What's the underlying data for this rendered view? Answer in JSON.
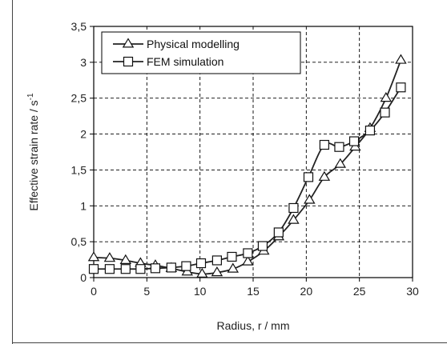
{
  "chart_data": {
    "type": "line",
    "xlabel": "Radius, r / mm",
    "ylabel": "Effective strain rate / s",
    "ylabel_superscript": "-1",
    "xlim": [
      0,
      30
    ],
    "ylim": [
      0,
      3.5
    ],
    "xticks": [
      "0",
      "5",
      "10",
      "15",
      "20",
      "25",
      "30"
    ],
    "yticks": [
      "0",
      "0,5",
      "1",
      "1,5",
      "2",
      "2,5",
      "3",
      "3,5"
    ],
    "grid": true,
    "legend_position": "top-left",
    "series": [
      {
        "name": "Physical modelling",
        "marker": "triangle",
        "color": "#222222",
        "x": [
          0,
          1.5,
          3,
          4.4,
          5.8,
          7.3,
          8.8,
          10.2,
          11.6,
          13.1,
          14.5,
          16,
          17.4,
          18.8,
          20.3,
          21.7,
          23.2,
          24.6,
          26,
          27.5,
          28.9
        ],
        "y": [
          0.28,
          0.27,
          0.24,
          0.2,
          0.17,
          0.13,
          0.08,
          0.05,
          0.07,
          0.12,
          0.22,
          0.37,
          0.57,
          0.8,
          1.08,
          1.4,
          1.58,
          1.82,
          2.08,
          2.5,
          3.03
        ]
      },
      {
        "name": "FEM simulation",
        "marker": "square",
        "color": "#222222",
        "x": [
          0,
          1.5,
          3,
          4.4,
          5.8,
          7.3,
          8.7,
          10.1,
          11.6,
          13,
          14.5,
          15.9,
          17.4,
          18.8,
          20.2,
          21.7,
          23.1,
          24.5,
          26,
          27.4,
          28.9
        ],
        "y": [
          0.12,
          0.12,
          0.12,
          0.12,
          0.13,
          0.14,
          0.16,
          0.2,
          0.24,
          0.29,
          0.34,
          0.44,
          0.63,
          0.97,
          1.4,
          1.85,
          1.82,
          1.9,
          2.05,
          2.3,
          2.65
        ]
      }
    ]
  }
}
